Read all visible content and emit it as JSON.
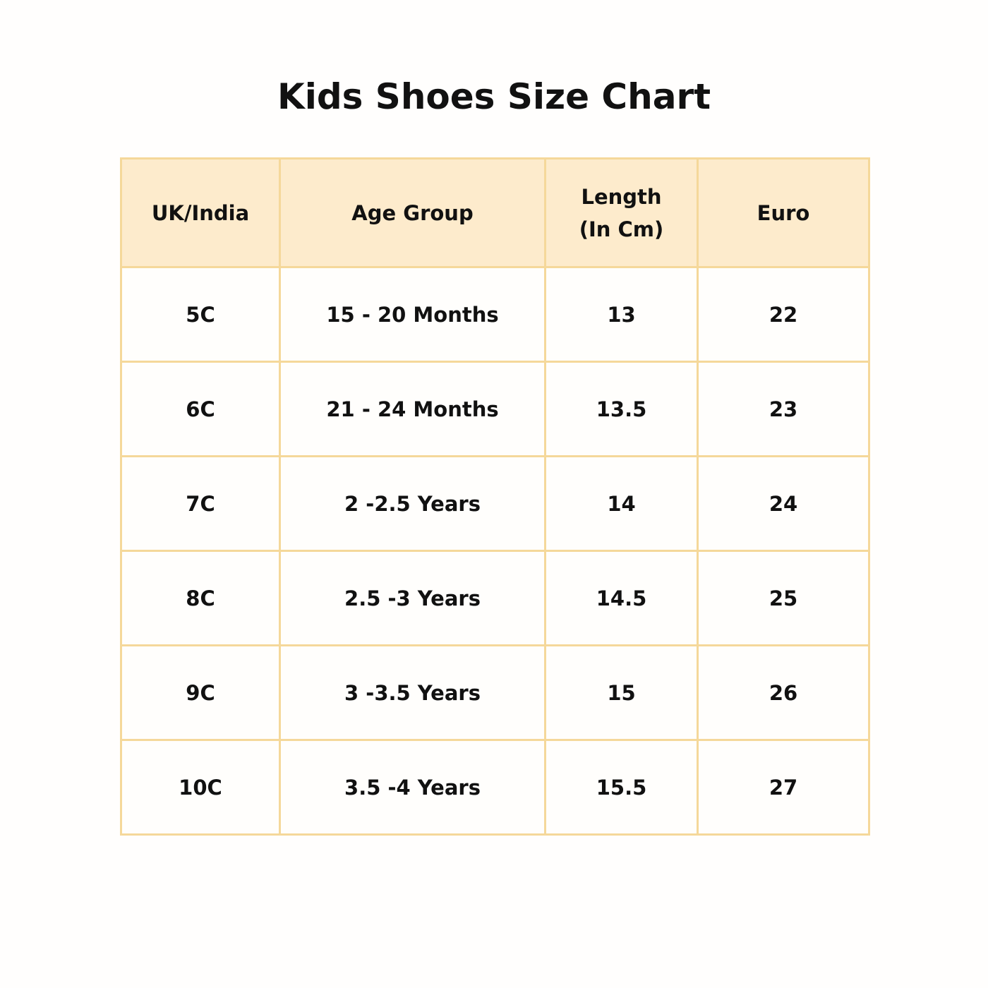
{
  "title": "Kids Shoes Size Chart",
  "colors": {
    "header_bg": "#fdebcc",
    "border": "#f5d89a"
  },
  "table": {
    "headers": [
      "UK/India",
      "Age Group",
      "Length\n(In Cm)",
      "Euro"
    ],
    "header_lines": [
      [
        "UK/India"
      ],
      [
        "Age Group"
      ],
      [
        "Length",
        "(In Cm)"
      ],
      [
        "Euro"
      ]
    ],
    "rows": [
      [
        "5C",
        "15 - 20 Months",
        "13",
        "22"
      ],
      [
        "6C",
        "21 - 24 Months",
        "13.5",
        "23"
      ],
      [
        "7C",
        "2 -2.5 Years",
        "14",
        "24"
      ],
      [
        "8C",
        "2.5 -3 Years",
        "14.5",
        "25"
      ],
      [
        "9C",
        "3 -3.5 Years",
        "15",
        "26"
      ],
      [
        "10C",
        "3.5 -4 Years",
        "15.5",
        "27"
      ]
    ]
  }
}
